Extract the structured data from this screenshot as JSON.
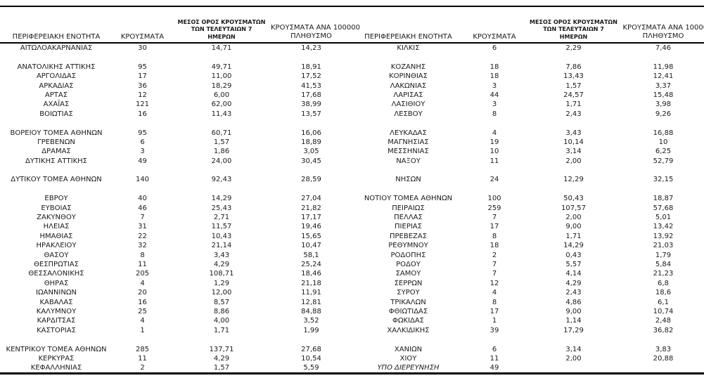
{
  "headers": {
    "region": "ΠΕΡΙΦΕΡΕΙΑΚΗ ΕΝΟΤΗΤΑ",
    "cases": "ΚΡΟΥΣΜΑΤΑ",
    "avg7_lines": [
      "ΜΕΣΟΣ ΟΡΟΣ ΚΡΟΥΣΜΑΤΩΝ",
      "ΤΩΝ ΤΕΛΕΥΤΑΙΩΝ 7",
      "ΗΜΕΡΩΝ"
    ],
    "per100k_lines": [
      "ΚΡΟΥΣΜΑΤΑ ΑΝΑ 100000",
      "ΠΛΗΘΥΣΜΟ"
    ]
  },
  "rows_left": [
    [
      "ΑΙΤΩΛΟΑΚΑΡΝΑΝΙΑΣ",
      "30",
      "14,71",
      "14,23"
    ],
    [
      "",
      "",
      "",
      ""
    ],
    [
      "ΑΝΑΤΟΛΙΚΗΣ ΑΤΤΙΚΗΣ",
      "95",
      "49,71",
      "18,91"
    ],
    [
      "ΑΡΓΟΛΙΔΑΣ",
      "17",
      "11,00",
      "17,52"
    ],
    [
      "ΑΡΚΑΔΙΑΣ",
      "36",
      "18,29",
      "41,53"
    ],
    [
      "ΑΡΤΑΣ",
      "12",
      "6,00",
      "17,68"
    ],
    [
      "ΑΧΑΪΑΣ",
      "121",
      "62,00",
      "38,99"
    ],
    [
      "ΒΟΙΩΤΙΑΣ",
      "16",
      "11,43",
      "13,57"
    ],
    [
      "",
      "",
      "",
      ""
    ],
    [
      "ΒΟΡΕΙΟΥ ΤΟΜΕΑ ΑΘΗΝΩΝ",
      "95",
      "60,71",
      "16,06"
    ],
    [
      "ΓΡΕΒΕΝΩΝ",
      "6",
      "1,57",
      "18,89"
    ],
    [
      "ΔΡΑΜΑΣ",
      "3",
      "1,86",
      "3,05"
    ],
    [
      "ΔΥΤΙΚΗΣ ΑΤΤΙΚΗΣ",
      "49",
      "24,00",
      "30,45"
    ],
    [
      "",
      "",
      "",
      ""
    ],
    [
      "ΔΥΤΙΚΟΥ ΤΟΜΕΑ ΑΘΗΝΩΝ",
      "140",
      "92,43",
      "28,59"
    ],
    [
      "",
      "",
      "",
      ""
    ],
    [
      "ΕΒΡΟΥ",
      "40",
      "14,29",
      "27,04"
    ],
    [
      "ΕΥΒΟΙΑΣ",
      "46",
      "25,43",
      "21,82"
    ],
    [
      "ΖΑΚΥΝΘΟΥ",
      "7",
      "2,71",
      "17,17"
    ],
    [
      "ΗΛΕΙΑΣ",
      "31",
      "11,57",
      "19,46"
    ],
    [
      "ΗΜΑΘΙΑΣ",
      "22",
      "10,43",
      "15,65"
    ],
    [
      "ΗΡΑΚΛΕΙΟΥ",
      "32",
      "21,14",
      "10,47"
    ],
    [
      "ΘΑΣΟΥ",
      "8",
      "3,43",
      "58,1"
    ],
    [
      "ΘΕΣΠΡΩΤΙΑΣ",
      "11",
      "4,29",
      "25,24"
    ],
    [
      "ΘΕΣΣΑΛΟΝΙΚΗΣ",
      "205",
      "108,71",
      "18,46"
    ],
    [
      "ΘΗΡΑΣ",
      "4",
      "1,29",
      "21,18"
    ],
    [
      "ΙΩΑΝΝΙΝΩΝ",
      "20",
      "12,00",
      "11,91"
    ],
    [
      "ΚΑΒΑΛΑΣ",
      "16",
      "8,57",
      "12,81"
    ],
    [
      "ΚΑΛΥΜΝΟΥ",
      "25",
      "8,86",
      "84,88"
    ],
    [
      "ΚΑΡΔΙΤΣΑΣ",
      "4",
      "4,00",
      "3,52"
    ],
    [
      "ΚΑΣΤΟΡΙΑΣ",
      "1",
      "1,71",
      "1,99"
    ],
    [
      "",
      "",
      "",
      ""
    ],
    [
      "ΚΕΝΤΡΙΚΟΥ ΤΟΜΕΑ ΑΘΗΝΩΝ",
      "285",
      "137,71",
      "27,68"
    ],
    [
      "ΚΕΡΚΥΡΑΣ",
      "11",
      "4,29",
      "10,54"
    ],
    [
      "ΚΕΦΑΛΛΗΝΙΑΣ",
      "2",
      "1,57",
      "5,59"
    ]
  ],
  "rows_right": [
    [
      "ΚΙΛΚΙΣ",
      "6",
      "2,29",
      "7,46"
    ],
    [
      "",
      "",
      "",
      ""
    ],
    [
      "ΚΟΖΑΝΗΣ",
      "18",
      "7,86",
      "11,98"
    ],
    [
      "ΚΟΡΙΝΘΙΑΣ",
      "18",
      "13,43",
      "12,41"
    ],
    [
      "ΛΑΚΩΝΙΑΣ",
      "3",
      "1,57",
      "3,37"
    ],
    [
      "ΛΑΡΙΣΑΣ",
      "44",
      "24,57",
      "15,48"
    ],
    [
      "ΛΑΣΙΘΙΟΥ",
      "3",
      "1,71",
      "3,98"
    ],
    [
      "ΛΕΣΒΟΥ",
      "8",
      "2,43",
      "9,26"
    ],
    [
      "",
      "",
      "",
      ""
    ],
    [
      "ΛΕΥΚΑΔΑΣ",
      "4",
      "3,43",
      "16,88"
    ],
    [
      "ΜΑΓΝΗΣΙΑΣ",
      "19",
      "10,14",
      "10"
    ],
    [
      "ΜΕΣΣΗΝΙΑΣ",
      "10",
      "3,14",
      "6,25"
    ],
    [
      "ΝΑΞΟΥ",
      "11",
      "2,00",
      "52,79"
    ],
    [
      "",
      "",
      "",
      ""
    ],
    [
      "ΝΗΣΩΝ",
      "24",
      "12,29",
      "32,15"
    ],
    [
      "",
      "",
      "",
      ""
    ],
    [
      "ΝΟΤΙΟΥ ΤΟΜΕΑ ΑΘΗΝΩΝ",
      "100",
      "50,43",
      "18,87"
    ],
    [
      "ΠΕΙΡΑΙΩΣ",
      "259",
      "107,57",
      "57,68"
    ],
    [
      "ΠΕΛΛΑΣ",
      "7",
      "2,00",
      "5,01"
    ],
    [
      "ΠΙΕΡΙΑΣ",
      "17",
      "9,00",
      "13,42"
    ],
    [
      "ΠΡΕΒΕΖΑΣ",
      "8",
      "1,71",
      "13,92"
    ],
    [
      "ΡΕΘΥΜΝΟΥ",
      "18",
      "14,29",
      "21,03"
    ],
    [
      "ΡΟΔΟΠΗΣ",
      "2",
      "0,43",
      "1,79"
    ],
    [
      "ΡΟΔΟΥ",
      "7",
      "5,57",
      "5,84"
    ],
    [
      "ΣΑΜΟΥ",
      "7",
      "4,14",
      "21,23"
    ],
    [
      "ΣΕΡΡΩΝ",
      "12",
      "4,29",
      "6,8"
    ],
    [
      "ΣΥΡΟΥ",
      "4",
      "2,43",
      "18,6"
    ],
    [
      "ΤΡΙΚΑΛΩΝ",
      "8",
      "4,86",
      "6,1"
    ],
    [
      "ΦΘΙΩΤΙΔΑΣ",
      "17",
      "9,00",
      "10,74"
    ],
    [
      "ΦΩΚΙΔΑΣ",
      "1",
      "1,14",
      "2,48"
    ],
    [
      "ΧΑΛΚΙΔΙΚΗΣ",
      "39",
      "17,29",
      "36,82"
    ],
    [
      "",
      "",
      "",
      ""
    ],
    [
      "ΧΑΝΙΩΝ",
      "6",
      "3,14",
      "3,83"
    ],
    [
      "ΧΙΟΥ",
      "11",
      "2,00",
      "20,88"
    ],
    [
      "ΥΠΟ ΔΙΕΡΕΥΝΗΣΗ",
      "49",
      "",
      "",
      "italic"
    ]
  ]
}
